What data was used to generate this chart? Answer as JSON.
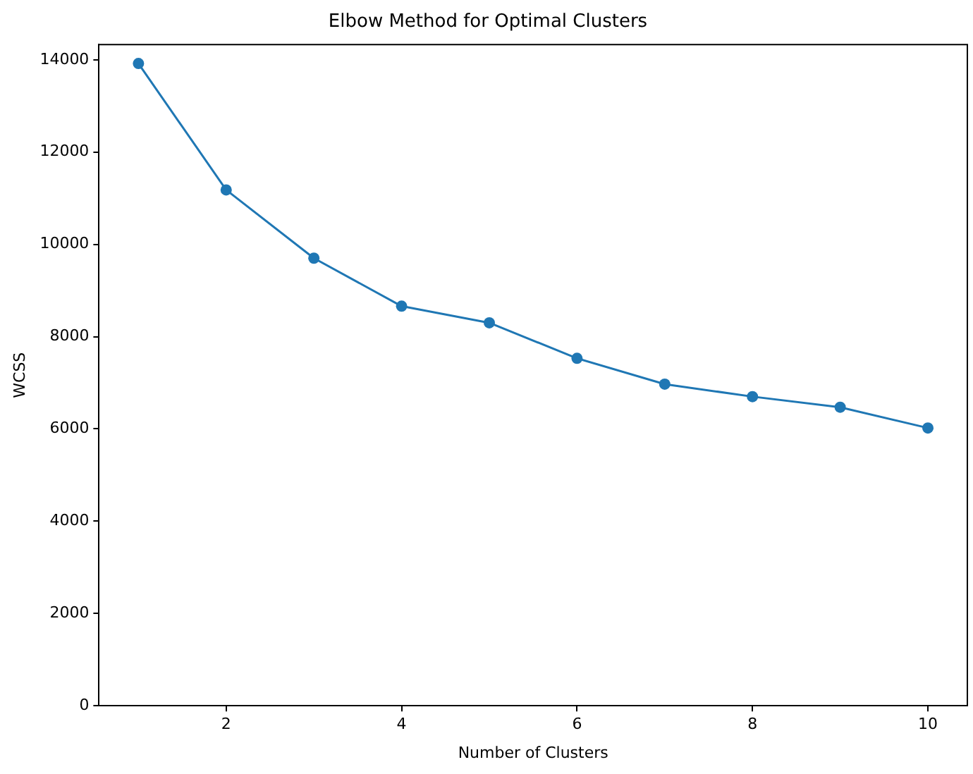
{
  "chart_data": {
    "type": "line",
    "title": "Elbow Method for Optimal Clusters",
    "xlabel": "Number of Clusters",
    "ylabel": "WCSS",
    "x": [
      1,
      2,
      3,
      4,
      5,
      6,
      7,
      8,
      9,
      10
    ],
    "series": [
      {
        "color": "#1f77b4",
        "values": [
          13920,
          11180,
          9700,
          8660,
          8300,
          7530,
          6970,
          6700,
          6470,
          6020
        ]
      }
    ],
    "xlim": [
      0.55,
      10.45
    ],
    "xticks": [
      2,
      4,
      6,
      8,
      10
    ],
    "ylim": [
      0,
      14330
    ],
    "yticks": [
      0,
      2000,
      4000,
      6000,
      8000,
      10000,
      12000,
      14000
    ],
    "grid": false,
    "legend": false,
    "marker": "circle",
    "line_style": "solid"
  }
}
